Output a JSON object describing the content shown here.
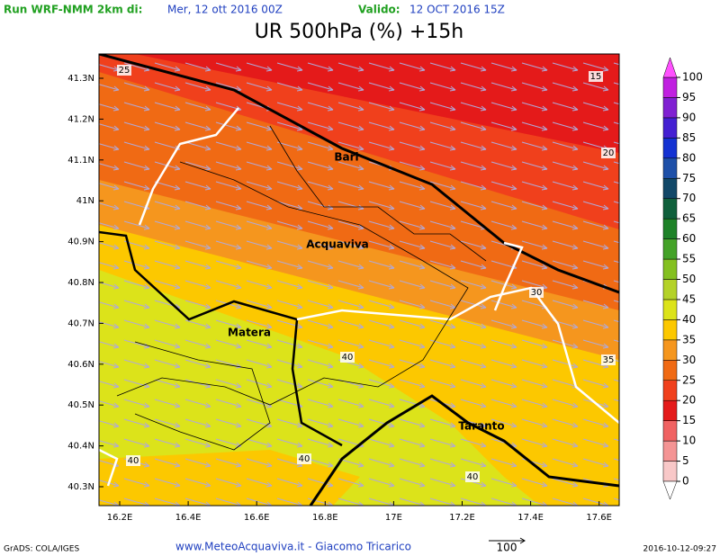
{
  "header": {
    "run_label": "Run WRF-NMM 2km di:",
    "run_date": "Mer, 12 ott 2016 00Z",
    "valid_label": "Valido:",
    "valid_date": "12 OCT 2016 15Z"
  },
  "title": "UR 500hPa (%) +15h",
  "map": {
    "lat_labels": [
      "41.3N",
      "41.2N",
      "41.1N",
      "41N",
      "40.9N",
      "40.8N",
      "40.7N",
      "40.6N",
      "40.5N",
      "40.4N",
      "40.3N"
    ],
    "lon_labels": [
      "16.2E",
      "16.4E",
      "16.6E",
      "16.8E",
      "17E",
      "17.2E",
      "17.4E",
      "17.6E"
    ],
    "cities": [
      "Bari",
      "Acquaviva",
      "Matera",
      "Taranto"
    ],
    "contour_labels": [
      25,
      15,
      20,
      30,
      35,
      40,
      40,
      40,
      40
    ]
  },
  "colorbar": {
    "ticks": [
      0,
      5,
      10,
      15,
      20,
      25,
      30,
      35,
      40,
      45,
      50,
      55,
      60,
      65,
      70,
      75,
      80,
      85,
      90,
      95,
      100
    ],
    "colors": [
      "#f8c8c8",
      "#f49494",
      "#f06262",
      "#e41a1a",
      "#f0401c",
      "#f06a14",
      "#f5961e",
      "#fcc800",
      "#dce31a",
      "#b4d228",
      "#84c020",
      "#44a228",
      "#1e8228",
      "#10603c",
      "#124868",
      "#1e50a8",
      "#1432d2",
      "#4420d2",
      "#8020d2",
      "#c020e0"
    ],
    "over_color": "#ff50ff",
    "under_color": "#ffffff"
  },
  "footer": {
    "software": "GrADS: COLA/IGES",
    "credit": "www.MeteoAcquaviva.it - Giacomo Tricarico",
    "vector_scale": 100,
    "timestamp": "2016-10-12-09:27"
  }
}
